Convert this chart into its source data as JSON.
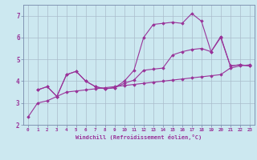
{
  "background_color": "#cce8f0",
  "grid_color": "#aabccc",
  "line_color": "#993399",
  "xlabel": "Windchill (Refroidissement éolien,°C)",
  "xlim": [
    -0.5,
    23.5
  ],
  "ylim": [
    2.0,
    7.5
  ],
  "yticks": [
    2,
    3,
    4,
    5,
    6,
    7
  ],
  "xticks": [
    0,
    1,
    2,
    3,
    4,
    5,
    6,
    7,
    8,
    9,
    10,
    11,
    12,
    13,
    14,
    15,
    16,
    17,
    18,
    19,
    20,
    21,
    22,
    23
  ],
  "s1x": [
    0,
    1,
    2,
    3,
    4,
    5,
    6,
    7,
    8,
    9,
    10,
    11,
    12,
    13,
    14,
    15,
    16,
    17,
    18,
    19,
    20,
    21,
    22,
    23
  ],
  "s1y": [
    2.35,
    3.0,
    3.1,
    3.3,
    3.5,
    3.55,
    3.6,
    3.65,
    3.7,
    3.75,
    3.8,
    3.85,
    3.9,
    3.95,
    4.0,
    4.05,
    4.1,
    4.15,
    4.2,
    4.25,
    4.3,
    4.6,
    4.7,
    4.75
  ],
  "s2x": [
    1,
    2,
    3,
    4,
    5,
    6,
    7,
    8,
    9,
    10,
    11,
    12,
    13,
    14,
    15,
    16,
    17,
    18,
    19,
    20,
    21,
    22,
    23
  ],
  "s2y": [
    3.6,
    3.75,
    3.3,
    4.3,
    4.45,
    4.0,
    3.75,
    3.65,
    3.7,
    3.9,
    4.05,
    4.5,
    4.55,
    4.6,
    5.2,
    5.35,
    5.45,
    5.5,
    5.35,
    6.0,
    4.7,
    4.75,
    4.7
  ],
  "s3x": [
    1,
    2,
    3,
    4,
    5,
    6,
    7,
    8,
    9,
    10,
    11,
    12,
    13,
    14,
    15,
    16,
    17,
    18,
    19,
    20,
    21,
    22,
    23
  ],
  "s3y": [
    3.6,
    3.75,
    3.3,
    4.3,
    4.45,
    4.0,
    3.75,
    3.65,
    3.7,
    4.0,
    4.5,
    6.0,
    6.6,
    6.65,
    6.7,
    6.65,
    7.1,
    6.75,
    5.35,
    6.05,
    4.7,
    4.75,
    4.7
  ]
}
